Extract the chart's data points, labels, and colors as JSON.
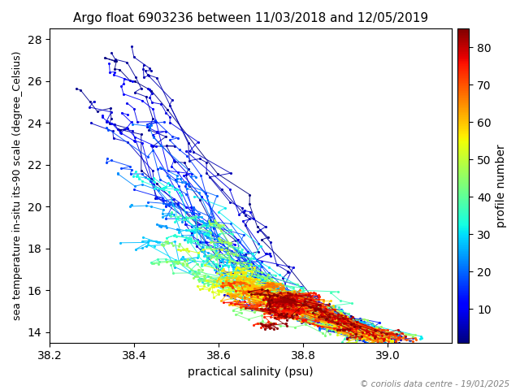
{
  "title": "Argo float 6903236 between 11/03/2018 and 12/05/2019",
  "xlabel": "practical salinity (psu)",
  "ylabel": "sea temperature in-situ its-90 scale (degree_Celsius)",
  "colorbar_label": "profile number",
  "xlim": [
    38.2,
    39.15
  ],
  "ylim": [
    13.5,
    28.5
  ],
  "xticks": [
    38.2,
    38.4,
    38.6,
    38.8,
    39.0
  ],
  "yticks": [
    14,
    16,
    18,
    20,
    22,
    24,
    26,
    28
  ],
  "cbar_ticks": [
    10,
    20,
    30,
    40,
    50,
    60,
    70,
    80
  ],
  "n_profiles": 85,
  "copyright": "© coriolis data centre - 19/01/2025",
  "figsize": [
    6.4,
    4.8
  ],
  "dpi": 100,
  "seed": 42
}
